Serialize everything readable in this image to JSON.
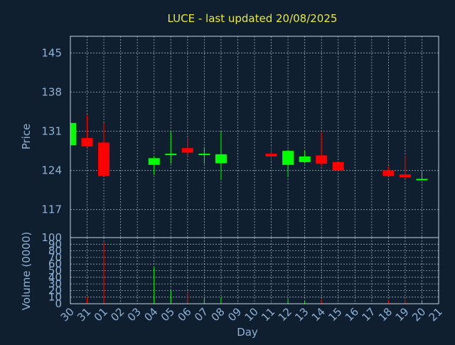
{
  "chart_data": {
    "type": "candlestick",
    "title": "LUCE - last updated 20/08/2025",
    "xlabel": "Day",
    "colors": {
      "background": "#0f1f30",
      "up": "#00ff00",
      "down": "#ff0000",
      "title": "#e8e83a",
      "axis_text": "#8fb1d6",
      "grid": "#c8d4e0"
    },
    "price_panel": {
      "ylabel": "Price",
      "ylim": [
        112,
        148
      ],
      "yticks": [
        117,
        124,
        131,
        138,
        145
      ]
    },
    "volume_panel": {
      "ylabel": "Volume (0000)",
      "ylim": [
        0,
        100
      ],
      "yticks": [
        0,
        10,
        20,
        30,
        40,
        50,
        60,
        70,
        80,
        90,
        100
      ],
      "tick_labels": [
        "0",
        "10",
        "20",
        "30",
        "40",
        "50",
        "60",
        "70",
        "80",
        "90",
        "100"
      ]
    },
    "days": [
      "30",
      "31",
      "01",
      "02",
      "03",
      "04",
      "05",
      "06",
      "07",
      "08",
      "09",
      "10",
      "11",
      "12",
      "13",
      "14",
      "15",
      "16",
      "17",
      "18",
      "19",
      "20",
      "21"
    ],
    "candles": [
      {
        "day": "30",
        "open": 128.5,
        "close": 132.5,
        "high": 132.5,
        "low": 128.5
      },
      {
        "day": "31",
        "open": 129.8,
        "close": 128.3,
        "high": 134.0,
        "low": 128.0
      },
      {
        "day": "01",
        "open": 129.0,
        "close": 123.0,
        "high": 132.5,
        "low": 123.0
      },
      {
        "day": "04",
        "open": 125.0,
        "close": 126.2,
        "high": 126.5,
        "low": 123.2
      },
      {
        "day": "05",
        "open": 126.8,
        "close": 127.0,
        "high": 131.0,
        "low": 125.2
      },
      {
        "day": "06",
        "open": 128.0,
        "close": 127.2,
        "high": 129.8,
        "low": 126.5
      },
      {
        "day": "07",
        "open": 126.8,
        "close": 127.0,
        "high": 128.2,
        "low": 125.2
      },
      {
        "day": "08",
        "open": 125.3,
        "close": 126.9,
        "high": 131.0,
        "low": 122.3
      },
      {
        "day": "11",
        "open": 127.0,
        "close": 126.5,
        "high": 128.3,
        "low": 125.7
      },
      {
        "day": "12",
        "open": 125.0,
        "close": 127.5,
        "high": 127.7,
        "low": 122.8
      },
      {
        "day": "13",
        "open": 125.5,
        "close": 126.5,
        "high": 127.5,
        "low": 125.3
      },
      {
        "day": "14",
        "open": 126.7,
        "close": 125.2,
        "high": 130.8,
        "low": 124.8
      },
      {
        "day": "15",
        "open": 125.5,
        "close": 124.0,
        "high": 125.5,
        "low": 124.0
      },
      {
        "day": "18",
        "open": 124.0,
        "close": 123.0,
        "high": 124.8,
        "low": 123.0
      },
      {
        "day": "19",
        "open": 123.3,
        "close": 122.8,
        "high": 126.7,
        "low": 122.5
      },
      {
        "day": "20",
        "open": 122.4,
        "close": 122.5,
        "high": 123.8,
        "low": 122.2
      }
    ],
    "volumes": [
      {
        "day": "30",
        "value": 0
      },
      {
        "day": "31",
        "value": 10
      },
      {
        "day": "01",
        "value": 92
      },
      {
        "day": "04",
        "value": 55
      },
      {
        "day": "05",
        "value": 20
      },
      {
        "day": "06",
        "value": 18
      },
      {
        "day": "07",
        "value": 8
      },
      {
        "day": "08",
        "value": 10
      },
      {
        "day": "11",
        "value": 5
      },
      {
        "day": "12",
        "value": 7
      },
      {
        "day": "13",
        "value": 4
      },
      {
        "day": "14",
        "value": 6
      },
      {
        "day": "15",
        "value": 2
      },
      {
        "day": "18",
        "value": 5
      },
      {
        "day": "19",
        "value": 5
      },
      {
        "day": "20",
        "value": 4
      }
    ]
  }
}
